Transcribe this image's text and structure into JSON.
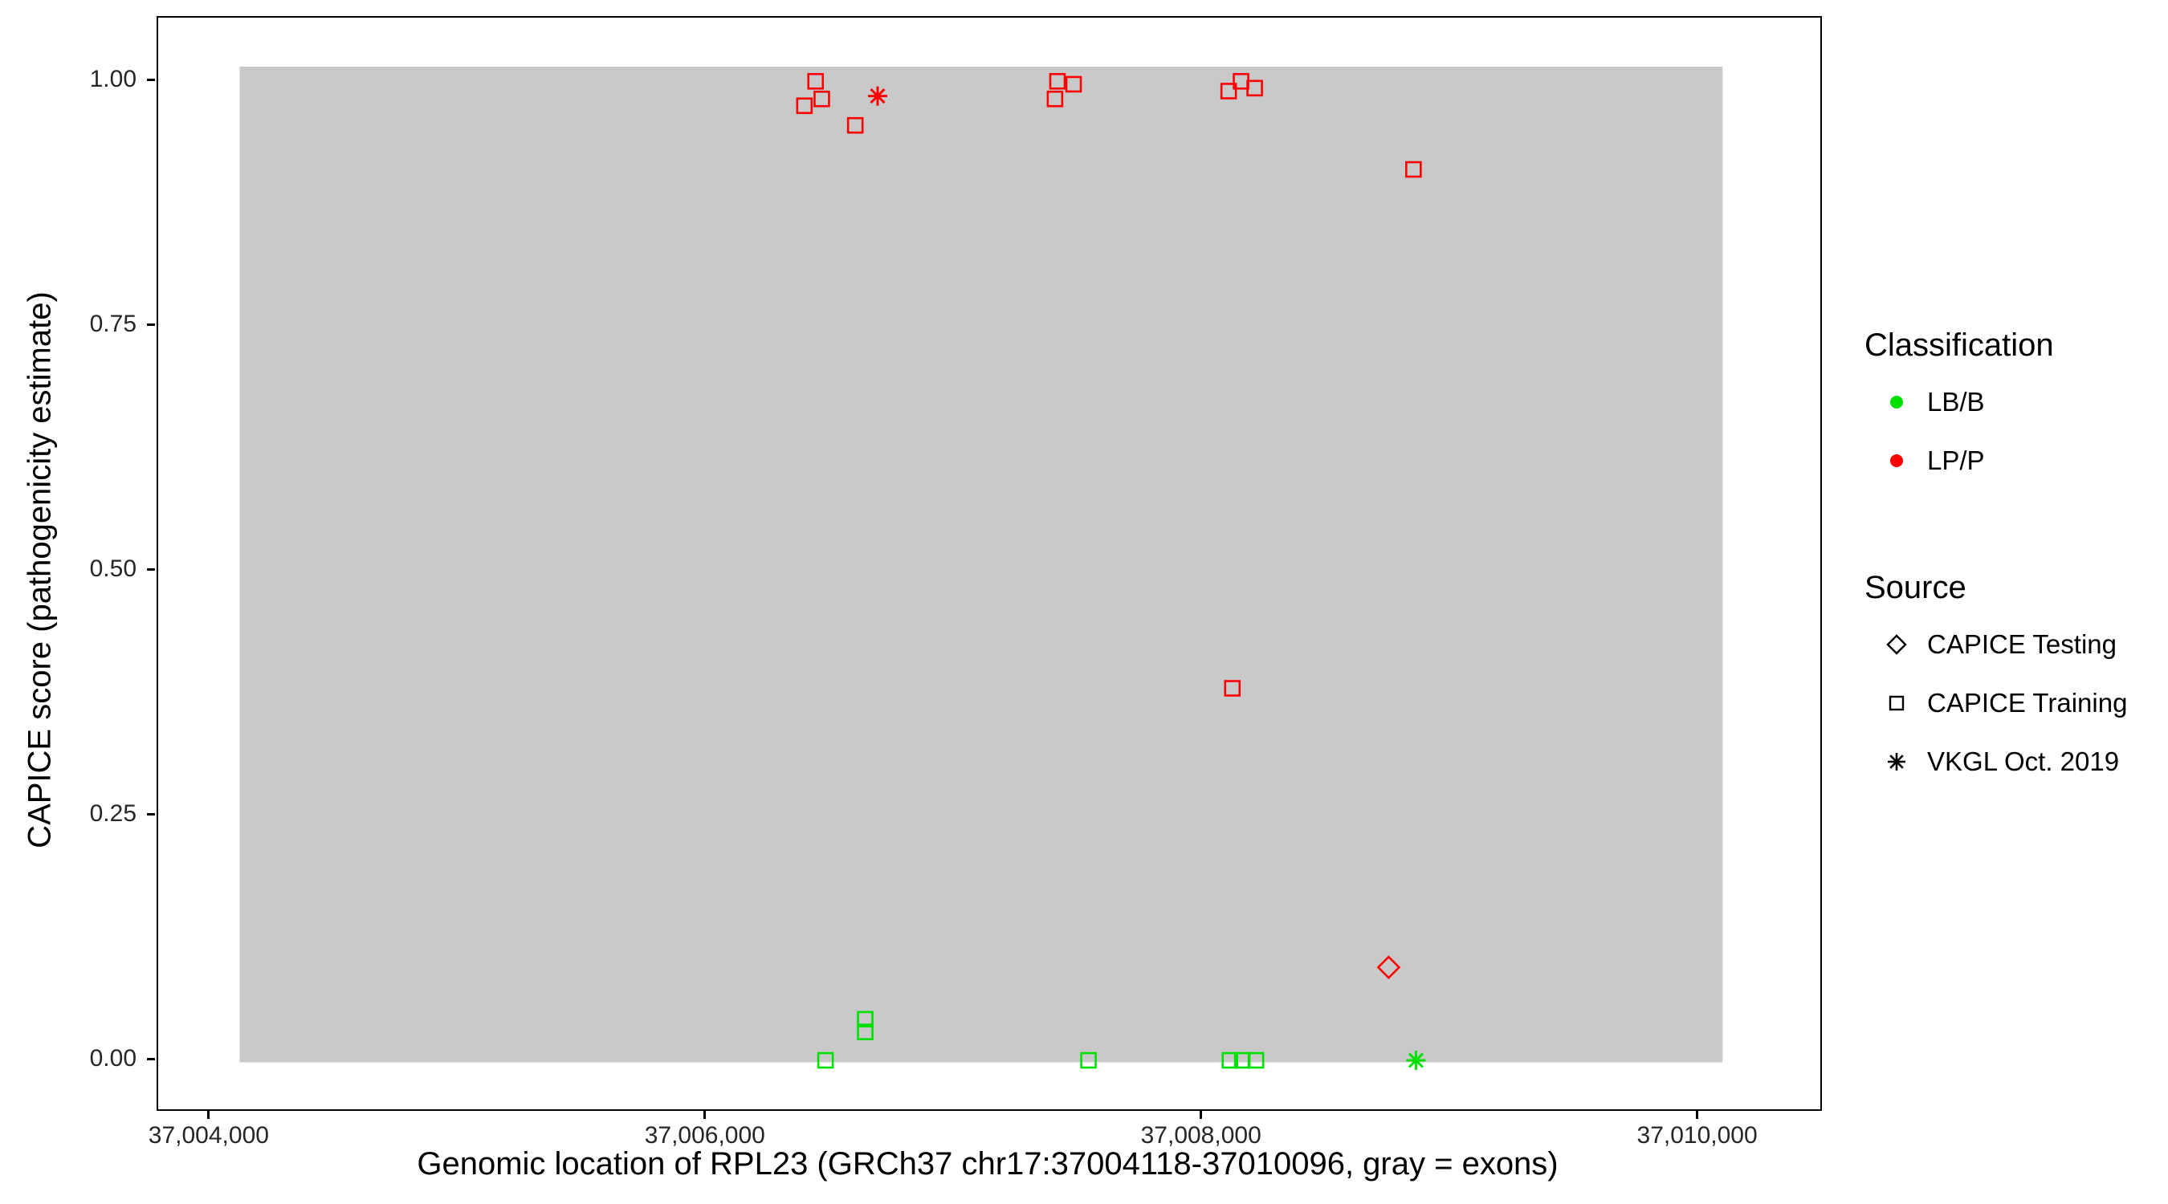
{
  "chart_data": {
    "type": "scatter",
    "xlabel": "Genomic location of RPL23 (GRCh37 chr17:37004118-37010096, gray = exons)",
    "ylabel": "CAPICE score (pathogenicity estimate)",
    "xlim": [
      37003790,
      37010490
    ],
    "ylim": [
      -0.05,
      1.065
    ],
    "x_ticks": [
      {
        "value": 37004000,
        "label": "37,004,000"
      },
      {
        "value": 37006000,
        "label": "37,006,000"
      },
      {
        "value": 37008000,
        "label": "37,008,000"
      },
      {
        "value": 37010000,
        "label": "37,010,000"
      }
    ],
    "y_ticks": [
      {
        "value": 0.0,
        "label": "0.00"
      },
      {
        "value": 0.25,
        "label": "0.25"
      },
      {
        "value": 0.5,
        "label": "0.50"
      },
      {
        "value": 0.75,
        "label": "0.75"
      },
      {
        "value": 1.0,
        "label": "1.00"
      }
    ],
    "exon_region": {
      "x0": 37004118,
      "x1": 37010096,
      "y0": -0.002,
      "y1": 1.015,
      "color": "#C9C9C9"
    },
    "colors": {
      "LB/B": "#00E000",
      "LP/P": "#FF0000"
    },
    "source_shapes": {
      "CAPICE Testing": "diamond",
      "CAPICE Training": "square",
      "VKGL Oct. 2019": "asterisk"
    },
    "points": [
      {
        "x": 37006440,
        "y": 1.0,
        "classification": "LP/P",
        "source": "CAPICE Training"
      },
      {
        "x": 37006395,
        "y": 0.975,
        "classification": "LP/P",
        "source": "CAPICE Training"
      },
      {
        "x": 37006465,
        "y": 0.982,
        "classification": "LP/P",
        "source": "CAPICE Training"
      },
      {
        "x": 37006600,
        "y": 0.955,
        "classification": "LP/P",
        "source": "CAPICE Training"
      },
      {
        "x": 37006690,
        "y": 0.985,
        "classification": "LP/P",
        "source": "VKGL Oct. 2019"
      },
      {
        "x": 37007415,
        "y": 1.0,
        "classification": "LP/P",
        "source": "CAPICE Training"
      },
      {
        "x": 37007480,
        "y": 0.997,
        "classification": "LP/P",
        "source": "CAPICE Training"
      },
      {
        "x": 37007405,
        "y": 0.982,
        "classification": "LP/P",
        "source": "CAPICE Training"
      },
      {
        "x": 37008105,
        "y": 0.99,
        "classification": "LP/P",
        "source": "CAPICE Training"
      },
      {
        "x": 37008155,
        "y": 1.0,
        "classification": "LP/P",
        "source": "CAPICE Training"
      },
      {
        "x": 37008210,
        "y": 0.993,
        "classification": "LP/P",
        "source": "CAPICE Training"
      },
      {
        "x": 37008850,
        "y": 0.91,
        "classification": "LP/P",
        "source": "CAPICE Training"
      },
      {
        "x": 37008120,
        "y": 0.38,
        "classification": "LP/P",
        "source": "CAPICE Training"
      },
      {
        "x": 37008750,
        "y": 0.095,
        "classification": "LP/P",
        "source": "CAPICE Testing"
      },
      {
        "x": 37006640,
        "y": 0.042,
        "classification": "LB/B",
        "source": "CAPICE Training"
      },
      {
        "x": 37006640,
        "y": 0.029,
        "classification": "LB/B",
        "source": "CAPICE Training"
      },
      {
        "x": 37006480,
        "y": 0.0,
        "classification": "LB/B",
        "source": "CAPICE Training"
      },
      {
        "x": 37007540,
        "y": 0.0,
        "classification": "LB/B",
        "source": "CAPICE Training"
      },
      {
        "x": 37008110,
        "y": 0.0,
        "classification": "LB/B",
        "source": "CAPICE Training"
      },
      {
        "x": 37008160,
        "y": 0.0,
        "classification": "LB/B",
        "source": "CAPICE Training"
      },
      {
        "x": 37008215,
        "y": 0.0,
        "classification": "LB/B",
        "source": "CAPICE Training"
      },
      {
        "x": 37008860,
        "y": 0.0,
        "classification": "LB/B",
        "source": "VKGL Oct. 2019"
      }
    ]
  },
  "legend": {
    "classification": {
      "title": "Classification",
      "items": [
        {
          "label": "LB/B",
          "color": "#00E000"
        },
        {
          "label": "LP/P",
          "color": "#FF0000"
        }
      ]
    },
    "source": {
      "title": "Source",
      "items": [
        {
          "label": "CAPICE Testing",
          "marker": "diamond-open"
        },
        {
          "label": "CAPICE Training",
          "marker": "square-open"
        },
        {
          "label": "VKGL Oct. 2019",
          "marker": "asterisk"
        }
      ]
    }
  }
}
